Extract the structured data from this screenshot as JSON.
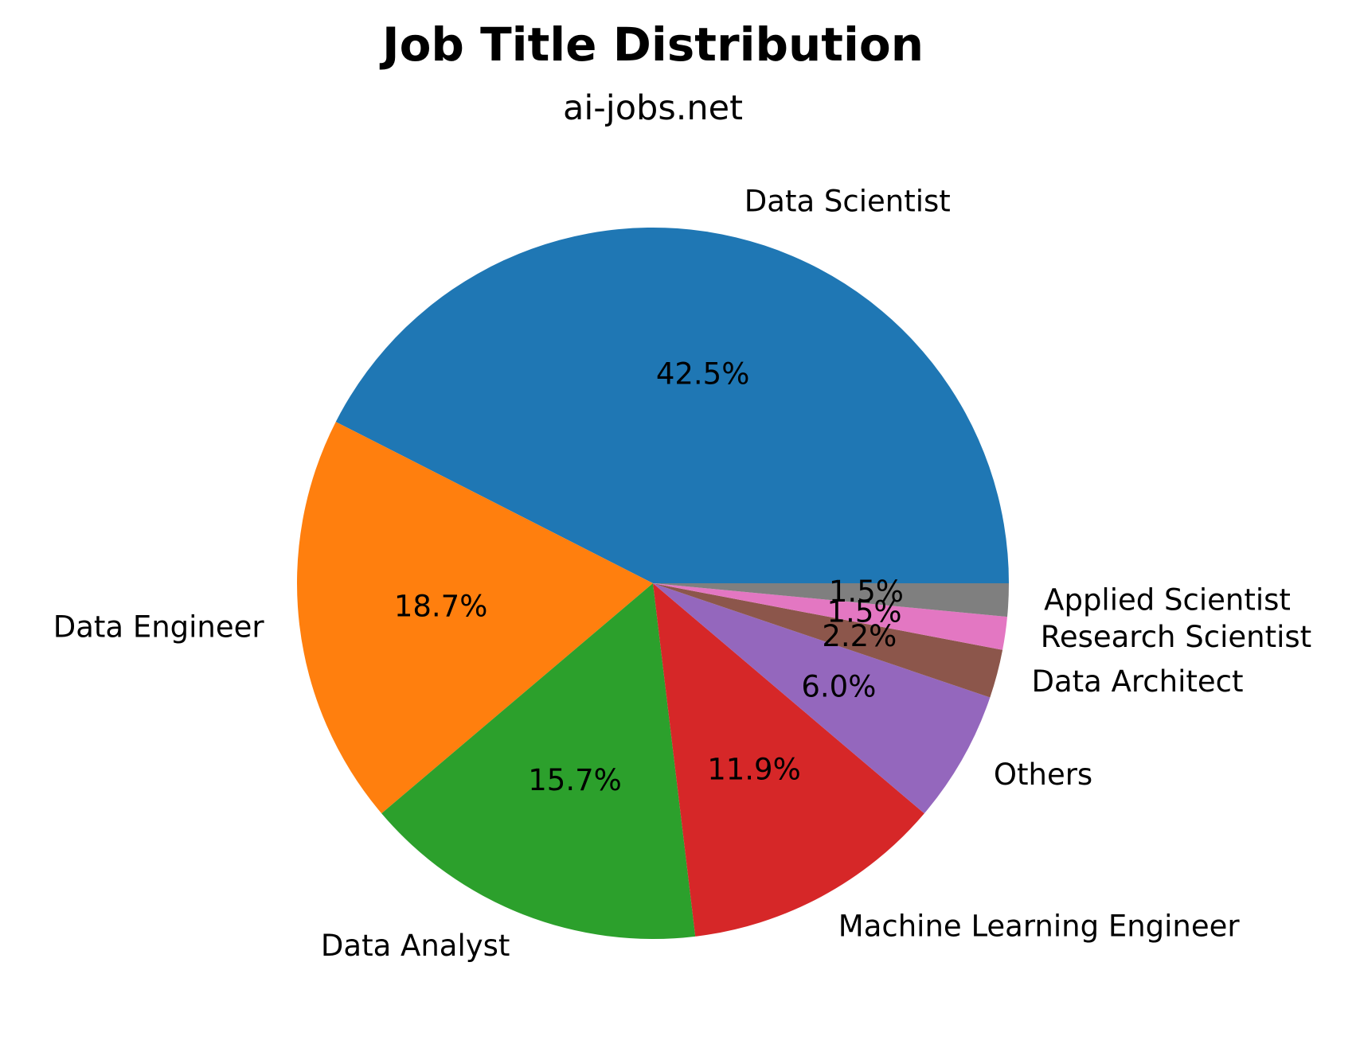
{
  "chart_data": {
    "type": "pie",
    "title": "Job Title Distribution",
    "subtitle": "ai-jobs.net",
    "start_angle_deg": 0,
    "direction": "counterclockwise",
    "slices": [
      {
        "label": "Data Scientist",
        "value": 42.5,
        "pct_label": "42.5%",
        "color": "#1f77b4"
      },
      {
        "label": "Data Engineer",
        "value": 18.7,
        "pct_label": "18.7%",
        "color": "#ff7f0e"
      },
      {
        "label": "Data Analyst",
        "value": 15.7,
        "pct_label": "15.7%",
        "color": "#2ca02c"
      },
      {
        "label": "Machine Learning Engineer",
        "value": 11.9,
        "pct_label": "11.9%",
        "color": "#d62728"
      },
      {
        "label": "Others",
        "value": 6.0,
        "pct_label": "6.0%",
        "color": "#9467bd"
      },
      {
        "label": "Data Architect",
        "value": 2.2,
        "pct_label": "2.2%",
        "color": "#8c564b"
      },
      {
        "label": "Research Scientist",
        "value": 1.5,
        "pct_label": "1.5%",
        "color": "#e377c2"
      },
      {
        "label": "Applied Scientist",
        "value": 1.5,
        "pct_label": "1.5%",
        "color": "#7f7f7f"
      }
    ]
  }
}
